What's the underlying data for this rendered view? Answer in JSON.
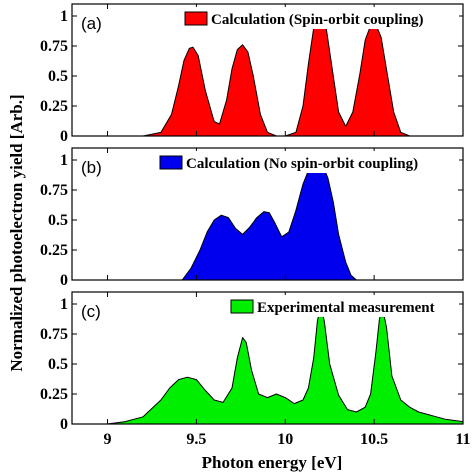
{
  "chart_data": {
    "type": "area",
    "xlabel": "Photon energy [eV]",
    "ylabel": "Normalized photoelectron  yield [Arb.]",
    "xlim": [
      8.8,
      11
    ],
    "x_ticks": [
      "9",
      "9.5",
      "10",
      "10.5",
      "11"
    ],
    "x_tick_values": [
      9,
      9.5,
      10,
      10.5,
      11
    ],
    "ylim": [
      0,
      1.1
    ],
    "y_ticks": [
      "0",
      "0.25",
      "0.5",
      "0.75",
      "1"
    ],
    "y_tick_values": [
      0,
      0.25,
      0.5,
      0.75,
      1
    ],
    "legend_position": "top-right",
    "panels": [
      {
        "label": "(a)",
        "legend": "Calculation (Spin-orbit coupling)",
        "color": "#ff0000",
        "x": [
          9.2,
          9.3,
          9.36,
          9.4,
          9.43,
          9.46,
          9.48,
          9.51,
          9.55,
          9.6,
          9.63,
          9.67,
          9.7,
          9.73,
          9.76,
          9.79,
          9.82,
          9.86,
          9.9,
          9.95,
          10.0,
          10.06,
          10.1,
          10.13,
          10.16,
          10.2,
          10.23,
          10.26,
          10.3,
          10.34,
          10.38,
          10.42,
          10.45,
          10.48,
          10.51,
          10.54,
          10.57,
          10.61,
          10.65,
          10.7
        ],
        "y": [
          0,
          0.03,
          0.18,
          0.42,
          0.63,
          0.73,
          0.74,
          0.67,
          0.38,
          0.12,
          0.1,
          0.3,
          0.56,
          0.72,
          0.76,
          0.7,
          0.5,
          0.18,
          0.03,
          0,
          0,
          0.03,
          0.25,
          0.6,
          0.9,
          0.99,
          0.9,
          0.6,
          0.2,
          0.08,
          0.2,
          0.52,
          0.8,
          0.92,
          0.93,
          0.82,
          0.55,
          0.2,
          0.03,
          0
        ]
      },
      {
        "label": "(b)",
        "legend": "Calculation (No spin-orbit coupling)",
        "color": "#0000ee",
        "x": [
          9.42,
          9.47,
          9.52,
          9.56,
          9.6,
          9.64,
          9.68,
          9.72,
          9.76,
          9.8,
          9.84,
          9.88,
          9.91,
          9.94,
          9.98,
          10.02,
          10.06,
          10.1,
          10.14,
          10.18,
          10.21,
          10.24,
          10.27,
          10.3,
          10.34,
          10.37,
          10.4
        ],
        "y": [
          0,
          0.1,
          0.25,
          0.4,
          0.5,
          0.54,
          0.52,
          0.43,
          0.38,
          0.44,
          0.52,
          0.57,
          0.56,
          0.48,
          0.36,
          0.4,
          0.58,
          0.8,
          0.95,
          1.0,
          0.96,
          0.85,
          0.65,
          0.38,
          0.15,
          0.04,
          0
        ]
      },
      {
        "label": "(c)",
        "legend": "Experimental measurement",
        "color": "#00ee00",
        "x": [
          9.0,
          9.1,
          9.2,
          9.3,
          9.35,
          9.4,
          9.45,
          9.5,
          9.55,
          9.6,
          9.65,
          9.7,
          9.73,
          9.76,
          9.78,
          9.81,
          9.85,
          9.9,
          9.95,
          10.0,
          10.05,
          10.1,
          10.13,
          10.16,
          10.18,
          10.2,
          10.22,
          10.25,
          10.3,
          10.35,
          10.4,
          10.45,
          10.48,
          10.51,
          10.53,
          10.55,
          10.57,
          10.6,
          10.65,
          10.7,
          10.75,
          10.8,
          10.85,
          10.9,
          11.0
        ],
        "y": [
          0,
          0.02,
          0.06,
          0.2,
          0.3,
          0.37,
          0.39,
          0.37,
          0.28,
          0.2,
          0.18,
          0.3,
          0.55,
          0.72,
          0.68,
          0.45,
          0.25,
          0.22,
          0.25,
          0.22,
          0.17,
          0.2,
          0.3,
          0.55,
          0.85,
          1.0,
          0.85,
          0.5,
          0.24,
          0.12,
          0.1,
          0.14,
          0.25,
          0.6,
          0.88,
          0.95,
          0.8,
          0.4,
          0.2,
          0.14,
          0.1,
          0.08,
          0.06,
          0.04,
          0.02
        ]
      }
    ]
  }
}
